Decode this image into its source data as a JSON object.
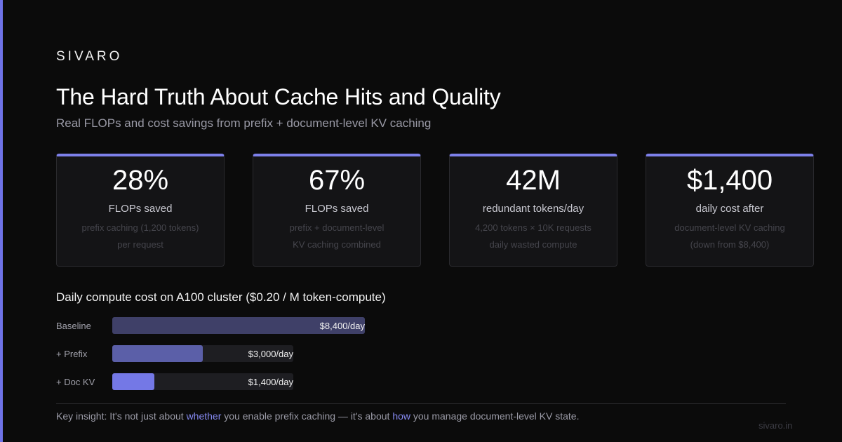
{
  "brand": "SIVARO",
  "title": "The Hard Truth About Cache Hits and Quality",
  "subtitle": "Real FLOPs and cost savings from prefix + document-level KV caching",
  "stats": [
    {
      "value": "28%",
      "label": "FLOPs saved",
      "note1": "prefix caching (1,200 tokens)",
      "note2": "per request"
    },
    {
      "value": "67%",
      "label": "FLOPs saved",
      "note1": "prefix + document-level",
      "note2": "KV caching combined"
    },
    {
      "value": "42M",
      "label": "redundant tokens/day",
      "note1": "4,200 tokens × 10K requests",
      "note2": "daily wasted compute"
    },
    {
      "value": "$1,400",
      "label": "daily cost after",
      "note1": "document-level KV caching",
      "note2": "(down from $8,400)"
    }
  ],
  "chart_data": {
    "type": "bar",
    "title": "Daily compute cost on A100 cluster ($0.20 / M token-compute)",
    "categories": [
      "Baseline",
      "+ Prefix",
      "+ Doc KV"
    ],
    "values": [
      8400,
      3000,
      1400
    ],
    "value_labels": [
      "$8,400/day",
      "$3,000/day",
      "$1,400/day"
    ],
    "xlim": [
      0,
      8400
    ],
    "colors": [
      "#3f4068",
      "#5b5fa8",
      "#7478e6"
    ]
  },
  "insight": {
    "prefix": "Key insight: It's not just about ",
    "hl1": "whether",
    "mid": " you enable prefix caching — it's about ",
    "hl2": "how",
    "suffix": " you manage document-level KV state."
  },
  "footer_url": "sivaro.in",
  "accent_color": "#7d80ea"
}
